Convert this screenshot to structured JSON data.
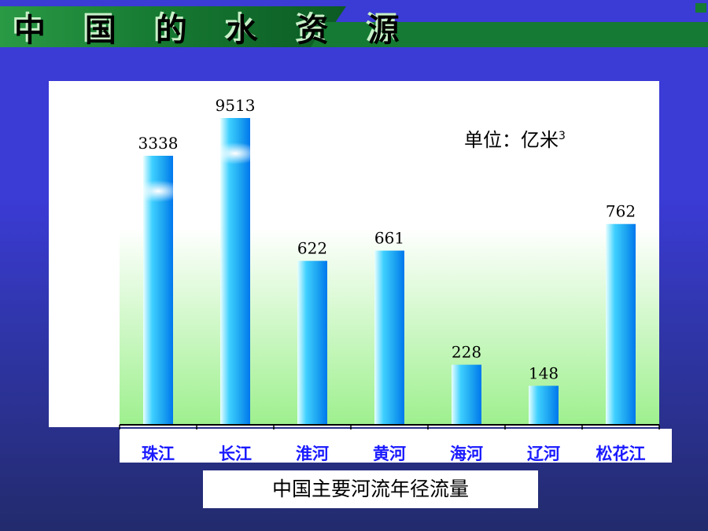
{
  "slide": {
    "title": "中 国 的 水 资 源",
    "caption": "中国主要河流年径流量"
  },
  "unit": {
    "text": "单位：亿米",
    "superscript": "3"
  },
  "colors": {
    "background": "#3b3bd6",
    "bar_light": "#e8ffff",
    "bar_dark": "#0077ee",
    "plot_gradient_bottom": "#9ef08e",
    "tick_label": "#1a1aff",
    "title_ribbon": "#1f8a3a"
  },
  "chart_data": {
    "type": "bar",
    "categories": [
      "珠江",
      "长江",
      "淮河",
      "黄河",
      "海河",
      "辽河",
      "松花江"
    ],
    "values": [
      3338,
      9513,
      622,
      661,
      228,
      148,
      762
    ],
    "title": "中国主要河流年径流量",
    "xlabel": "",
    "ylabel": "",
    "unit": "亿米3",
    "scale": "broken (bars for 珠江 and 长江 truncated)",
    "grid": false,
    "legend": "none"
  }
}
